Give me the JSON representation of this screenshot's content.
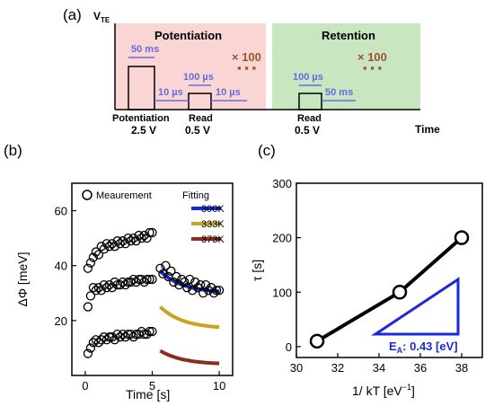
{
  "panel_labels": {
    "a": "(a)",
    "b": "(b)",
    "c": "(c)"
  },
  "colors": {
    "potentiation_bg": "#f9d6d4",
    "retention_bg": "#c8e6bf",
    "arrow_blue": "#6a6ae0",
    "repeat_brown": "#a0522d",
    "fit_300K": "#1a2ad6",
    "fit_333K": "#c9a41c",
    "fit_373K": "#8b2c1e",
    "triangle_blue": "#1a2ad6"
  },
  "panel_a": {
    "y_axis_label": "V",
    "y_axis_sub": "TE",
    "x_axis_label": "Time",
    "potentiation_title": "Potentiation",
    "retention_title": "Retention",
    "repeat_left": "× 100",
    "repeat_right": "× 100",
    "pulse_width_pot": "50 ms",
    "read_width_pot": "100 µs",
    "gap_before_read": "10 µs",
    "gap_after_read": "10 µs",
    "read_width_ret": "100 µs",
    "gap_ret": "50 ms",
    "pulse_label_pot": "Potentiation",
    "pulse_voltage_pot": "2.5 V",
    "read_label_1": "Read",
    "read_voltage_1": "0.5 V",
    "read_label_2": "Read",
    "read_voltage_2": "0.5 V"
  },
  "chart_data": [
    {
      "type": "scatter",
      "panel": "b",
      "xlabel": "Time [s]",
      "ylabel": "ΔΦ [meV]",
      "xlim": [
        -1,
        11
      ],
      "ylim": [
        0,
        70
      ],
      "xticks": [
        0,
        5,
        10
      ],
      "yticks": [
        20,
        40,
        60
      ],
      "legend_measurement": "Meaurement",
      "legend_fitting_title": "Fitting",
      "series": [
        {
          "name": "Meaurement",
          "marker": "open-circle",
          "x": [
            0.2,
            0.4,
            0.6,
            0.8,
            1.0,
            1.2,
            1.4,
            1.6,
            1.8,
            2.0,
            2.2,
            2.4,
            2.6,
            2.8,
            3.0,
            3.2,
            3.4,
            3.6,
            3.8,
            4.0,
            4.2,
            4.4,
            4.6,
            4.8,
            5.0
          ],
          "y": [
            39,
            41,
            43,
            45,
            44,
            47,
            46,
            48,
            47,
            48,
            47,
            49,
            48,
            49,
            48,
            50,
            49,
            50,
            49,
            51,
            50,
            51,
            50,
            52,
            52
          ]
        },
        {
          "name": "Meaurement-2",
          "marker": "open-circle",
          "x": [
            0.2,
            0.4,
            0.6,
            0.8,
            1.0,
            1.2,
            1.4,
            1.6,
            1.8,
            2.0,
            2.2,
            2.4,
            2.6,
            2.8,
            3.0,
            3.2,
            3.4,
            3.6,
            3.8,
            4.0,
            4.2,
            4.4,
            4.6,
            4.8,
            5.0,
            5.6,
            5.8,
            6.0,
            6.2,
            6.4,
            6.6,
            6.8,
            7.0,
            7.2,
            7.4,
            7.6,
            7.8,
            8.0,
            8.2,
            8.4,
            8.6,
            8.8,
            9.0,
            9.2,
            9.4,
            9.6,
            9.8,
            10.0
          ],
          "y": [
            25,
            29,
            32,
            31,
            32,
            31,
            33,
            32,
            33,
            32,
            34,
            33,
            33,
            34,
            33,
            34,
            34,
            35,
            34,
            35,
            35,
            34,
            35,
            35,
            35,
            39,
            37,
            40,
            36,
            38,
            34,
            36,
            33,
            35,
            34,
            32,
            35,
            31,
            34,
            32,
            33,
            30,
            33,
            31,
            32,
            30,
            31,
            31
          ]
        },
        {
          "name": "Meaurement-3",
          "marker": "open-circle",
          "x": [
            0.2,
            0.4,
            0.6,
            0.8,
            1.0,
            1.2,
            1.4,
            1.6,
            1.8,
            2.0,
            2.2,
            2.4,
            2.6,
            2.8,
            3.0,
            3.2,
            3.4,
            3.6,
            3.8,
            4.0,
            4.2,
            4.4,
            4.6,
            4.8,
            5.0
          ],
          "y": [
            8,
            10,
            12,
            13,
            12,
            13,
            14,
            13,
            14,
            14,
            13,
            15,
            14,
            15,
            14,
            15,
            15,
            14,
            15,
            15,
            16,
            15,
            15,
            16,
            16
          ]
        }
      ],
      "fits": [
        {
          "name": "300K",
          "x": [
            5.6,
            10.0
          ],
          "start": 38,
          "end": 30
        },
        {
          "name": "333K",
          "x": [
            5.6,
            10.0
          ],
          "start": 25,
          "end": 17
        },
        {
          "name": "373K",
          "x": [
            5.6,
            10.0
          ],
          "start": 9,
          "end": 4
        }
      ]
    },
    {
      "type": "line",
      "panel": "c",
      "xlabel": "1/ kT [eV",
      "xlabel_sup": "−1",
      "xlabel_end": "]",
      "ylabel": "τ [s]",
      "xlim": [
        30,
        39
      ],
      "ylim": [
        -20,
        300
      ],
      "xticks": [
        30,
        32,
        34,
        36,
        38
      ],
      "yticks": [
        0,
        100,
        200,
        300
      ],
      "x": [
        31,
        35,
        38
      ],
      "y": [
        10,
        100,
        200
      ],
      "annotation": "E",
      "annotation_sub": "A",
      "annotation_value": ": 0.43 [eV]"
    }
  ]
}
